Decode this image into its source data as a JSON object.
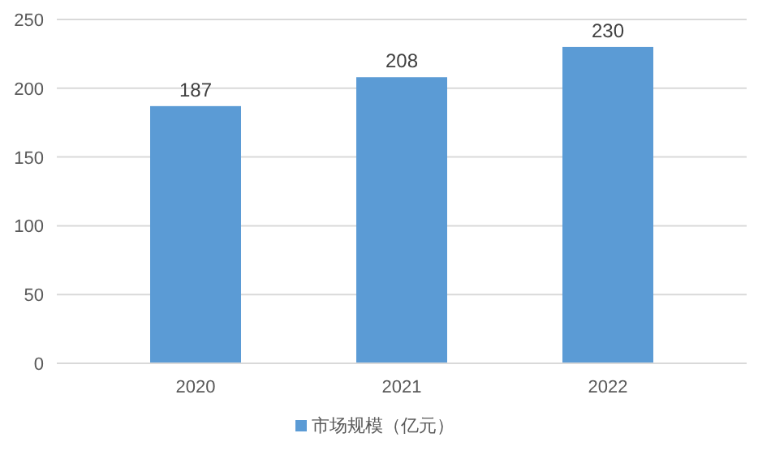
{
  "chart_data": {
    "type": "bar",
    "categories": [
      "2020",
      "2021",
      "2022"
    ],
    "series": [
      {
        "name": "市场规模（亿元）",
        "color": "#5b9bd5",
        "values": [
          187,
          208,
          230
        ]
      }
    ],
    "ylim": [
      0,
      250
    ],
    "yticks": [
      0,
      50,
      100,
      150,
      200,
      250
    ],
    "grid": "y",
    "legend": "bottom",
    "data_labels": true
  }
}
